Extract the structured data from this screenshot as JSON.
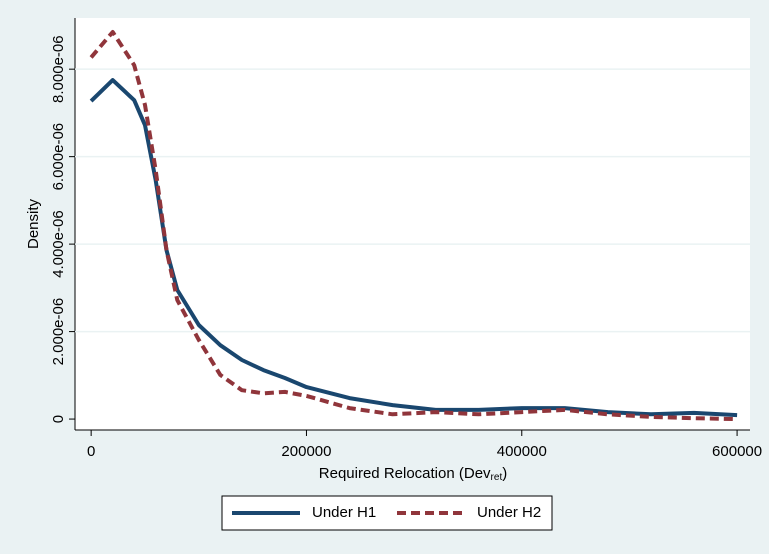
{
  "chart_data": {
    "type": "line",
    "y_label": "Density",
    "x_label": {
      "text": "Required Relocation (Dev",
      "subscript": "ret",
      "suffix": ")"
    },
    "x": [
      0,
      20000,
      40000,
      50000,
      60000,
      70000,
      80000,
      100000,
      120000,
      140000,
      160000,
      180000,
      200000,
      240000,
      280000,
      320000,
      360000,
      400000,
      440000,
      480000,
      520000,
      560000,
      600000
    ],
    "series": [
      {
        "name": "Under H1",
        "color": "#1a476f",
        "dash": "solid",
        "values": [
          7.27e-06,
          7.75e-06,
          7.29e-06,
          6.72e-06,
          5.46e-06,
          3.86e-06,
          2.95e-06,
          2.15e-06,
          1.69e-06,
          1.35e-06,
          1.12e-06,
          9.4e-07,
          7.3e-07,
          4.8e-07,
          3.2e-07,
          2.1e-07,
          2.1e-07,
          2.5e-07,
          2.5e-07,
          1.6e-07,
          1.1e-07,
          1.4e-07,
          9e-08
        ]
      },
      {
        "name": "Under H2",
        "color": "#90353b",
        "dash": "dashed",
        "values": [
          8.27e-06,
          8.85e-06,
          8.09e-06,
          7.18e-06,
          5.69e-06,
          3.86e-06,
          2.72e-06,
          1.81e-06,
          1.01e-06,
          6.6e-07,
          5.9e-07,
          6.2e-07,
          5.3e-07,
          2.5e-07,
          1.1e-07,
          1.6e-07,
          1.1e-07,
          1.6e-07,
          2.1e-07,
          1.1e-07,
          5e-08,
          2e-08,
          0
        ]
      }
    ],
    "xlim": [
      -15000,
      612000
    ],
    "xticks": [
      0,
      200000,
      400000,
      600000
    ],
    "ylim": [
      -2.5e-07,
      9.17e-06
    ],
    "yticks": [
      0,
      {
        "value": 2e-06,
        "label": "2.000e-06"
      },
      {
        "value": 4e-06,
        "label": "4.000e-06"
      },
      {
        "value": 6e-06,
        "label": "6.000e-06"
      },
      {
        "value": 8e-06,
        "label": "8.000e-06"
      }
    ],
    "grid": true,
    "legend": "bottom"
  }
}
